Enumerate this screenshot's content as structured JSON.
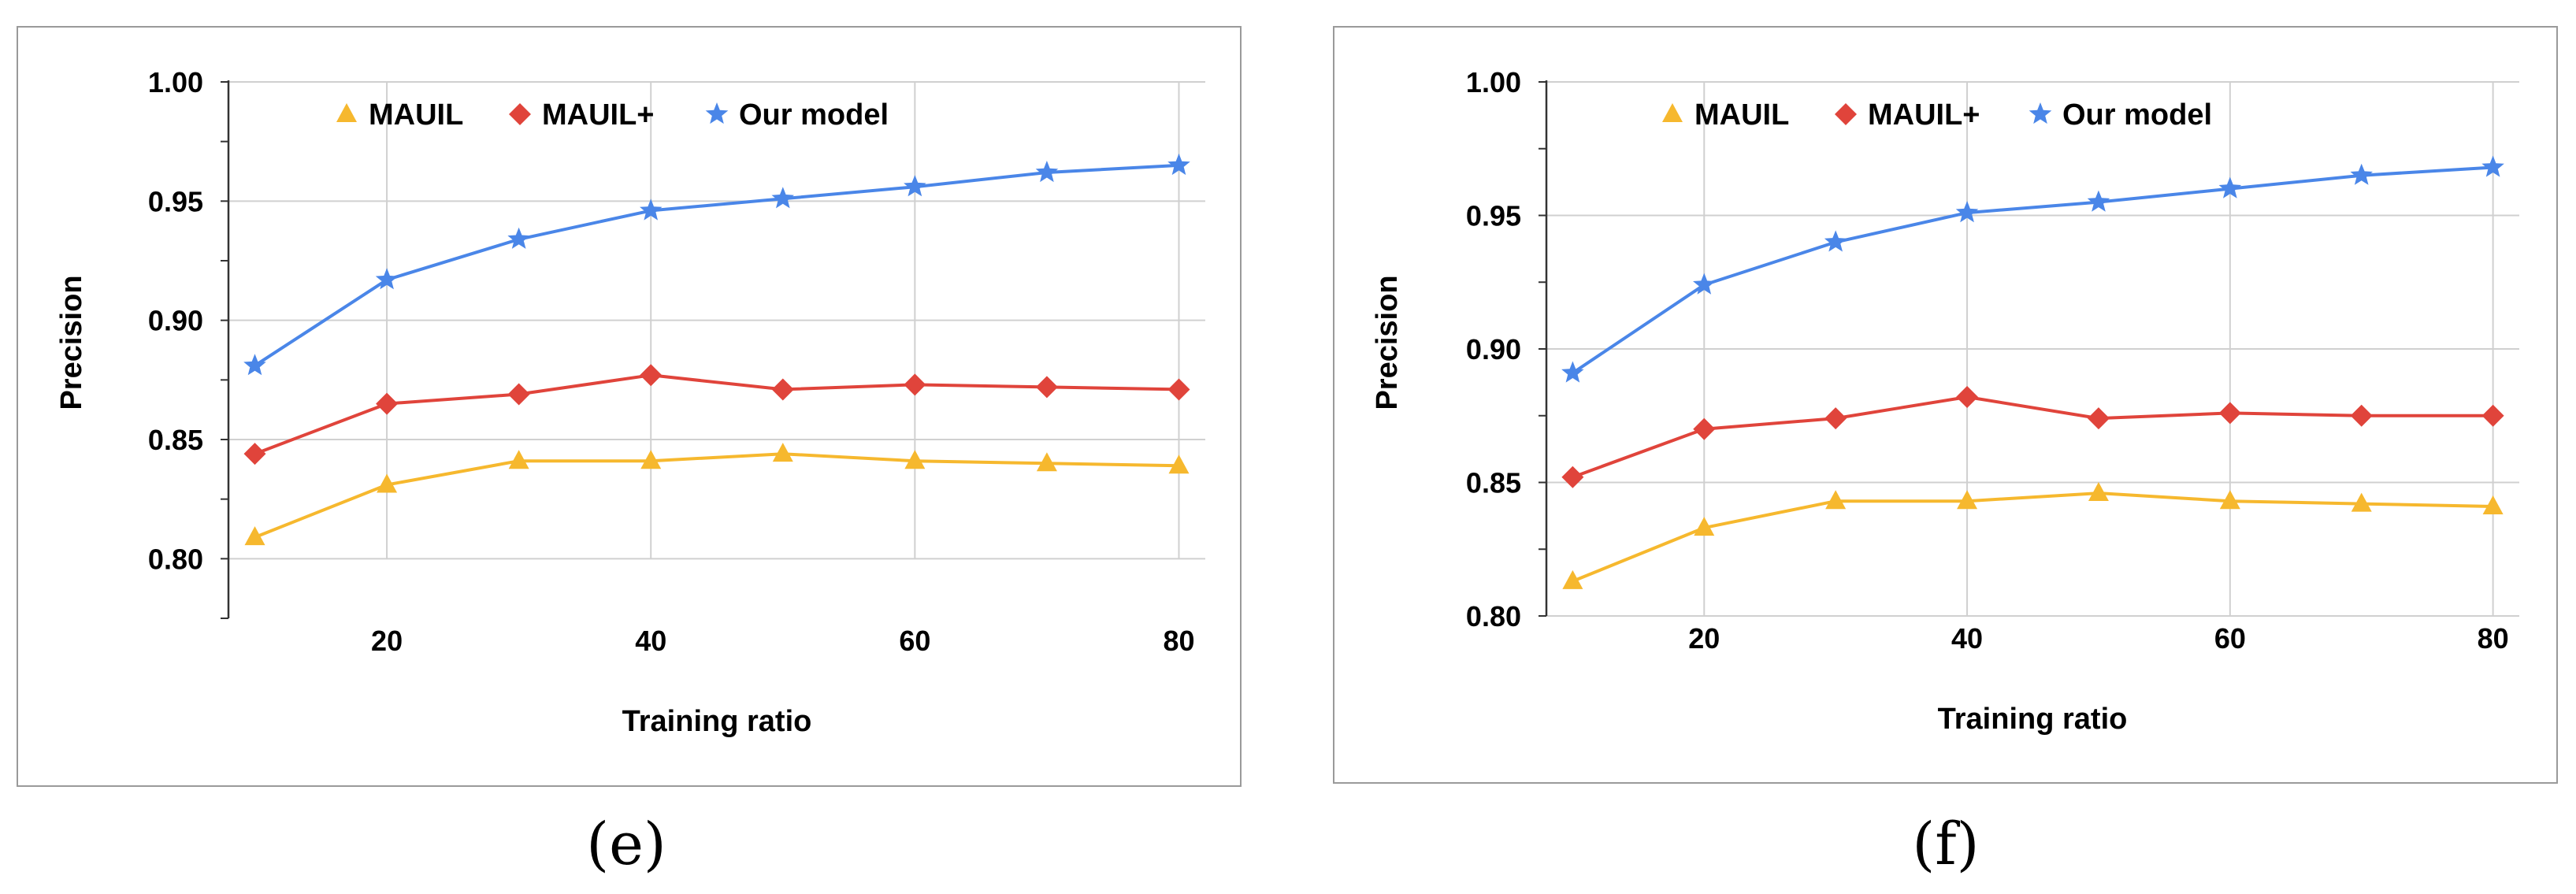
{
  "chart_data": [
    {
      "id": "e",
      "type": "line",
      "caption": "(e)",
      "xlabel": "Training ratio",
      "ylabel": "Precision",
      "xlim": [
        8,
        82
      ],
      "ylim": [
        0.775,
        1.0
      ],
      "yticks": [
        0.8,
        0.85,
        0.9,
        0.95,
        1.0
      ],
      "ytick_labels": [
        "0.80",
        "0.85",
        "0.90",
        "0.95",
        "1.00"
      ],
      "xticks": [
        20,
        40,
        60,
        80
      ],
      "xtick_labels": [
        "20",
        "40",
        "60",
        "80"
      ],
      "grid": true,
      "legend": "top",
      "x": [
        10,
        20,
        30,
        40,
        50,
        60,
        70,
        80
      ],
      "series": [
        {
          "name": "MAUIL",
          "marker": "triangle",
          "color": "#F6B82E",
          "values": [
            0.809,
            0.831,
            0.841,
            0.841,
            0.844,
            0.841,
            0.84,
            0.839
          ]
        },
        {
          "name": "MAUIL+",
          "marker": "diamond",
          "color": "#E0443B",
          "values": [
            0.844,
            0.865,
            0.869,
            0.877,
            0.871,
            0.873,
            0.872,
            0.871
          ]
        },
        {
          "name": "Our model",
          "marker": "star",
          "color": "#4A86E8",
          "values": [
            0.881,
            0.917,
            0.934,
            0.946,
            0.951,
            0.956,
            0.962,
            0.965
          ]
        }
      ]
    },
    {
      "id": "f",
      "type": "line",
      "caption": "(f)",
      "xlabel": "Training ratio",
      "ylabel": "Precision",
      "xlim": [
        8,
        82
      ],
      "ylim": [
        0.8,
        1.0
      ],
      "yticks": [
        0.8,
        0.85,
        0.9,
        0.95,
        1.0
      ],
      "ytick_labels": [
        "0.80",
        "0.85",
        "0.90",
        "0.95",
        "1.00"
      ],
      "xticks": [
        20,
        40,
        60,
        80
      ],
      "xtick_labels": [
        "20",
        "40",
        "60",
        "80"
      ],
      "grid": true,
      "legend": "top",
      "x": [
        10,
        20,
        30,
        40,
        50,
        60,
        70,
        80
      ],
      "series": [
        {
          "name": "MAUIL",
          "marker": "triangle",
          "color": "#F6B82E",
          "values": [
            0.813,
            0.833,
            0.843,
            0.843,
            0.846,
            0.843,
            0.842,
            0.841
          ]
        },
        {
          "name": "MAUIL+",
          "marker": "diamond",
          "color": "#E0443B",
          "values": [
            0.852,
            0.87,
            0.874,
            0.882,
            0.874,
            0.876,
            0.875,
            0.875
          ]
        },
        {
          "name": "Our model",
          "marker": "star",
          "color": "#4A86E8",
          "values": [
            0.891,
            0.924,
            0.94,
            0.951,
            0.955,
            0.96,
            0.965,
            0.968
          ]
        }
      ]
    }
  ]
}
